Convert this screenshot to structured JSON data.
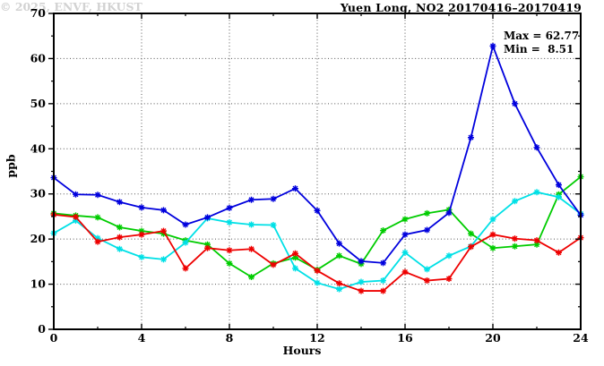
{
  "chart_data": {
    "type": "line",
    "title": "Yuen Long, NO2 20170416–20170419",
    "xlabel": "Hours",
    "ylabel": "ppb",
    "xlim": [
      0,
      24
    ],
    "ylim": [
      0,
      70
    ],
    "xticks_major": [
      0,
      4,
      8,
      12,
      16,
      20,
      24
    ],
    "xticks_minor": [
      2,
      6,
      10,
      14,
      18,
      22
    ],
    "yticks_major": [
      0,
      10,
      20,
      30,
      40,
      50,
      60,
      70
    ],
    "yticks_minor": [
      5,
      15,
      25,
      35,
      45,
      55,
      65
    ],
    "grid_x": [
      4,
      8,
      12,
      16,
      20
    ],
    "grid_y": [
      10,
      20,
      30,
      40,
      50,
      60
    ],
    "grid_style": "dotted",
    "legend_position": "none",
    "marker": "asterisk",
    "x": [
      0,
      1,
      2,
      3,
      4,
      5,
      6,
      7,
      8,
      9,
      10,
      11,
      12,
      13,
      14,
      15,
      16,
      17,
      18,
      19,
      20,
      21,
      22,
      23,
      24
    ],
    "series": [
      {
        "name": "green-series",
        "color": "#00cc00",
        "values": [
          25.7,
          25.2,
          24.8,
          22.6,
          21.8,
          21.2,
          19.7,
          18.8,
          14.6,
          11.6,
          14.6,
          15.9,
          13.2,
          16.3,
          14.5,
          21.9,
          24.4,
          25.7,
          26.5,
          21.2,
          18.0,
          18.4,
          18.8,
          29.9,
          33.8
        ]
      },
      {
        "name": "cyan-series",
        "color": "#00e0e6",
        "values": [
          21.3,
          24.1,
          20.2,
          17.8,
          16.0,
          15.5,
          19.2,
          24.6,
          23.7,
          23.2,
          23.1,
          13.5,
          10.3,
          8.9,
          10.5,
          10.8,
          17.0,
          13.3,
          16.3,
          18.4,
          24.4,
          28.4,
          30.4,
          29.3,
          25.6
        ]
      },
      {
        "name": "red-series",
        "color": "#ee0000",
        "values": [
          25.4,
          24.9,
          19.4,
          20.4,
          21.0,
          21.8,
          13.5,
          18.0,
          17.5,
          17.8,
          14.3,
          16.8,
          13.0,
          10.2,
          8.51,
          8.51,
          12.7,
          10.8,
          11.2,
          18.3,
          21.0,
          20.1,
          19.7,
          17.0,
          20.3
        ]
      },
      {
        "name": "blue-series",
        "color": "#0000dd",
        "values": [
          33.6,
          29.9,
          29.8,
          28.2,
          27.0,
          26.4,
          23.2,
          24.8,
          26.9,
          28.7,
          28.9,
          31.2,
          26.3,
          19.0,
          15.1,
          14.7,
          21.0,
          22.0,
          25.8,
          42.5,
          62.77,
          50.0,
          40.3,
          32.0,
          25.3
        ]
      }
    ],
    "annotations": [
      "Max = 62.77",
      "Min =  8.51"
    ],
    "max_value": 62.77,
    "min_value": 8.51,
    "watermark": "© 2025, ENVF, HKUST"
  }
}
